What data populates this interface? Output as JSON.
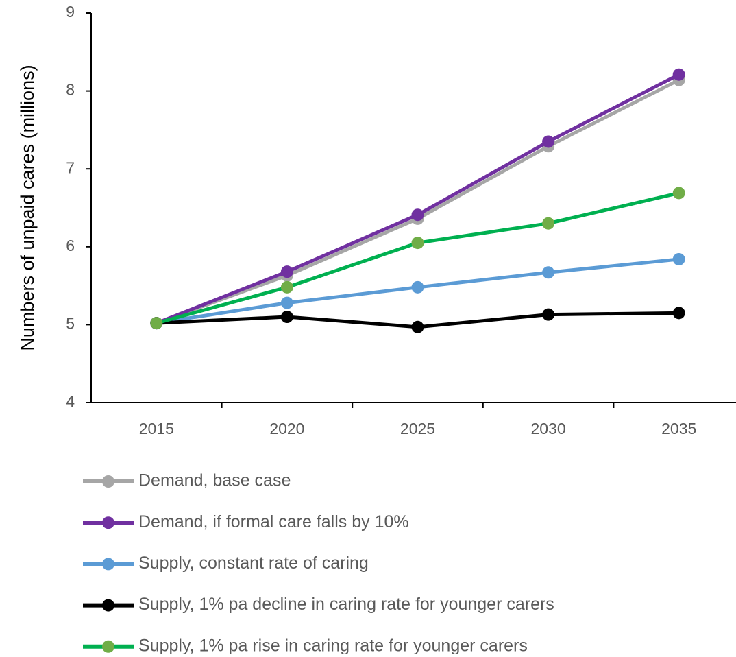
{
  "chart_data": {
    "type": "line",
    "y_label": "Numbers of unpaid cares (millions)",
    "categories": [
      "2015",
      "2020",
      "2025",
      "2030",
      "2035"
    ],
    "series": [
      {
        "name": "Demand, base case",
        "color": "#a6a6a6",
        "values": [
          5.02,
          5.63,
          6.36,
          7.29,
          8.14
        ]
      },
      {
        "name": "Demand, if formal care falls by 10%",
        "color": "#7030a0",
        "values": [
          5.02,
          5.68,
          6.41,
          7.35,
          8.21
        ]
      },
      {
        "name": "Supply, constant rate of caring",
        "color": "#5b9bd5",
        "values": [
          5.02,
          5.28,
          5.48,
          5.67,
          5.84
        ]
      },
      {
        "name": "Supply, 1% pa decline in caring rate for younger carers",
        "color": "#000000",
        "values": [
          5.02,
          5.1,
          4.97,
          5.13,
          5.15
        ]
      },
      {
        "name": "Supply, 1% pa rise in caring rate for younger carers",
        "color": "#00b050",
        "marker_color": "#70ad47",
        "values": [
          5.02,
          5.48,
          6.05,
          6.3,
          6.69
        ]
      }
    ],
    "ylim": [
      4,
      9
    ],
    "yticks": [
      4,
      5,
      6,
      7,
      8,
      9
    ],
    "grid": false,
    "legend": "bottom"
  }
}
